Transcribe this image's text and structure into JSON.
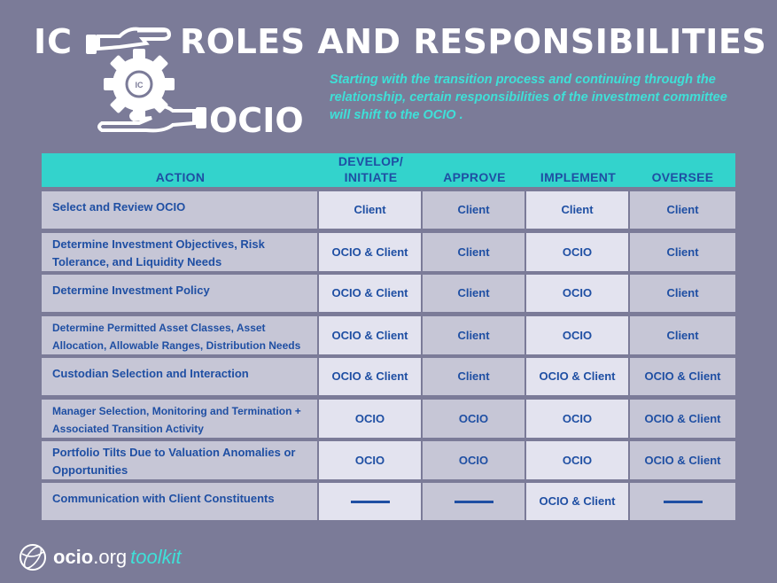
{
  "header": {
    "title_ic": "IC",
    "title_main": "ROLES AND RESPONSIBILITIES",
    "title_ocio": "OCIO",
    "gear_label": "IC"
  },
  "intro": "Starting with the transition process and continuing through the relationship, certain responsibilities of the investment committee will shift to the OCIO .",
  "table": {
    "columns": [
      "ACTION",
      "DEVELOP/\nINITIATE",
      "APPROVE",
      "IMPLEMENT",
      "OVERSEE"
    ],
    "rows": [
      {
        "action": "Select and Review OCIO",
        "develop": "Client",
        "approve": "Client",
        "implement": "Client",
        "oversee": "Client"
      },
      {
        "action": "Determine Investment Objectives, Risk Tolerance, and Liquidity Needs",
        "develop": "OCIO & Client",
        "approve": "Client",
        "implement": "OCIO",
        "oversee": "Client"
      },
      {
        "action": "Determine Investment Policy",
        "develop": "OCIO & Client",
        "approve": "Client",
        "implement": "OCIO",
        "oversee": "Client"
      },
      {
        "action": "Determine Permitted Asset Classes, Asset Allocation, Allowable Ranges, Distribution Needs",
        "develop": "OCIO & Client",
        "approve": "Client",
        "implement": "OCIO",
        "oversee": "Client"
      },
      {
        "action": "Custodian Selection and Interaction",
        "develop": "OCIO & Client",
        "approve": "Client",
        "implement": "OCIO & Client",
        "oversee": "OCIO & Client"
      },
      {
        "action": "Manager Selection, Monitoring and Termination + Associated Transition Activity",
        "develop": "OCIO",
        "approve": "OCIO",
        "implement": "OCIO",
        "oversee": "OCIO & Client"
      },
      {
        "action": "Portfolio Tilts Due to Valuation Anomalies or Opportunities",
        "develop": "OCIO",
        "approve": "OCIO",
        "implement": "OCIO",
        "oversee": "OCIO & Client"
      },
      {
        "action": "Communication with Client Constituents",
        "develop": "",
        "approve": "",
        "implement": "OCIO & Client",
        "oversee": ""
      }
    ]
  },
  "footer": {
    "brand_bold": "ocio",
    "brand_light": ".org",
    "brand_toolkit": "toolkit"
  },
  "colors": {
    "background": "#7b7b98",
    "header_band": "#33d3cc",
    "accent_text": "#3fe0d8",
    "table_text": "#1f4fa3"
  }
}
